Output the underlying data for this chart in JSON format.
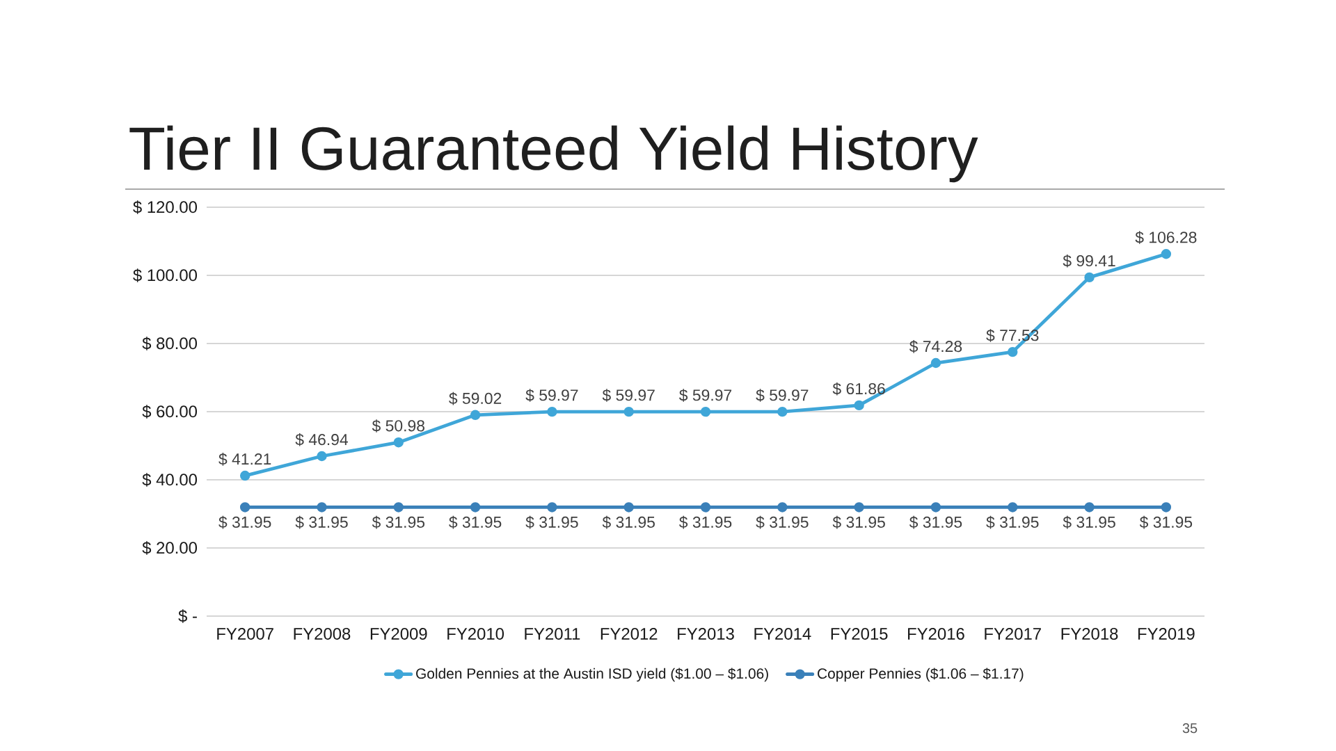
{
  "chart_data": {
    "type": "line",
    "title": "Tier II Guaranteed Yield History",
    "categories": [
      "FY2007",
      "FY2008",
      "FY2009",
      "FY2010",
      "FY2011",
      "FY2012",
      "FY2013",
      "FY2014",
      "FY2015",
      "FY2016",
      "FY2017",
      "FY2018",
      "FY2019"
    ],
    "series": [
      {
        "name": "Golden Pennies at the Austin ISD yield ($1.00 – $1.06)",
        "color": "#3fa6d8",
        "values": [
          41.21,
          46.94,
          50.98,
          59.02,
          59.97,
          59.97,
          59.97,
          59.97,
          61.86,
          74.28,
          77.53,
          99.41,
          106.28
        ],
        "value_labels": [
          "$ 41.21",
          "$ 46.94",
          "$ 50.98",
          "$ 59.02",
          "$ 59.97",
          "$ 59.97",
          "$ 59.97",
          "$ 59.97",
          "$ 61.86",
          "$ 74.28",
          "$ 77.53",
          "$ 99.41",
          "$ 106.28"
        ]
      },
      {
        "name": "Copper Pennies ($1.06 – $1.17)",
        "color": "#3a80b9",
        "values": [
          31.95,
          31.95,
          31.95,
          31.95,
          31.95,
          31.95,
          31.95,
          31.95,
          31.95,
          31.95,
          31.95,
          31.95,
          31.95
        ],
        "value_labels": [
          "$ 31.95",
          "$ 31.95",
          "$ 31.95",
          "$ 31.95",
          "$ 31.95",
          "$ 31.95",
          "$ 31.95",
          "$ 31.95",
          "$ 31.95",
          "$ 31.95",
          "$ 31.95",
          "$ 31.95",
          "$ 31.95"
        ]
      }
    ],
    "ylim": [
      0,
      120
    ],
    "yticks": [
      {
        "value": 0,
        "label": "$ -"
      },
      {
        "value": 20,
        "label": "$ 20.00"
      },
      {
        "value": 40,
        "label": "$ 40.00"
      },
      {
        "value": 60,
        "label": "$ 60.00"
      },
      {
        "value": 80,
        "label": "$ 80.00"
      },
      {
        "value": 100,
        "label": "$ 100.00"
      },
      {
        "value": 120,
        "label": "$ 120.00"
      }
    ],
    "grid": "y",
    "legend": "bottom",
    "marker": "circle",
    "line_style": "solid",
    "annotations": [
      "35"
    ]
  }
}
